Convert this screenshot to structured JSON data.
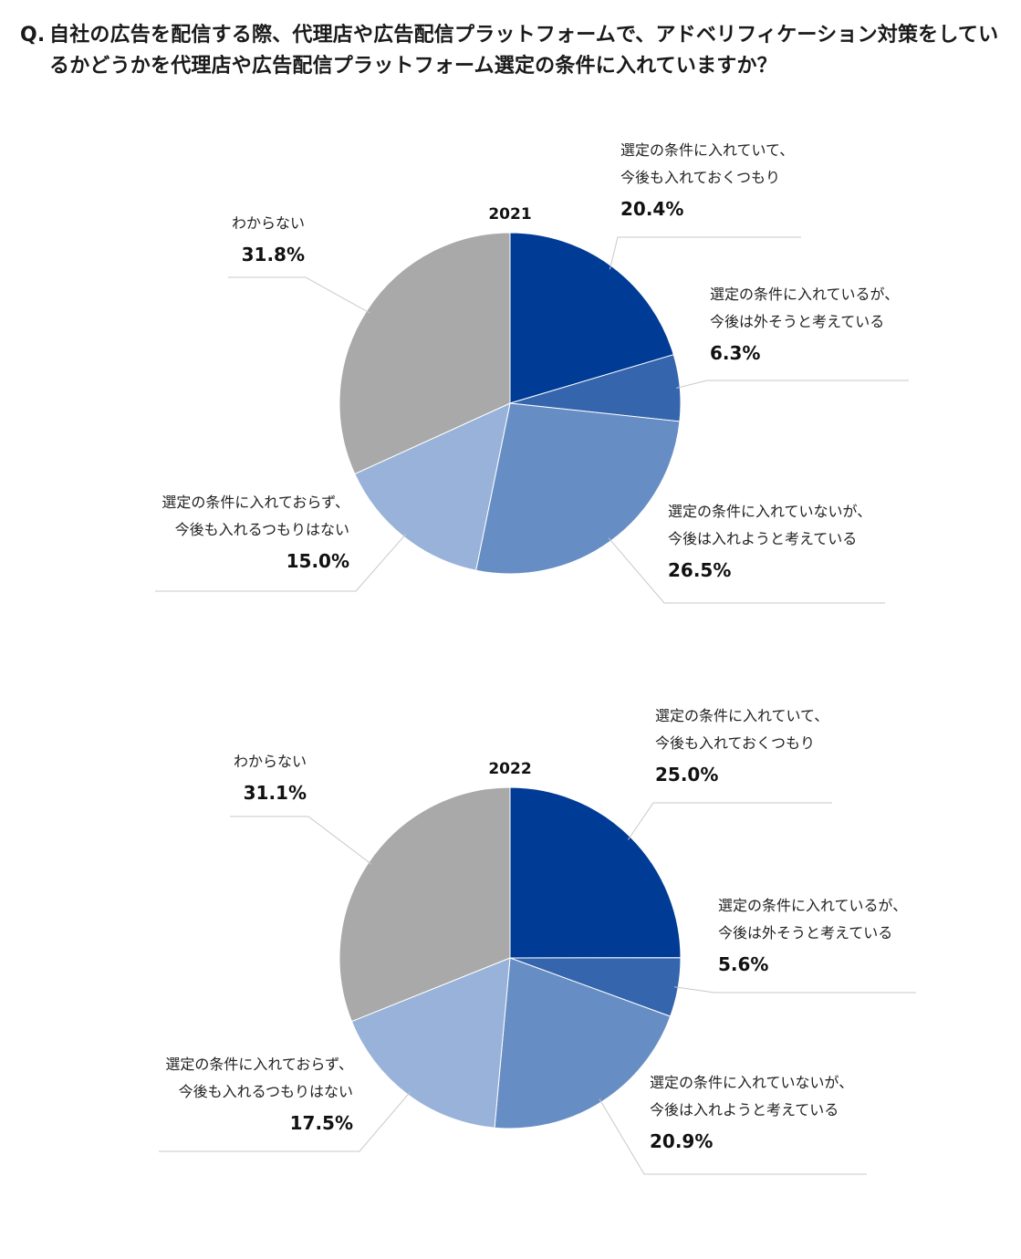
{
  "question": {
    "prefix": "Q.",
    "text": "自社の広告を配信する際、代理店や広告配信プラットフォームで、アドベリフィケーション対策をしているかどうかを代理店や広告配信プラットフォーム選定の条件に入れていますか？"
  },
  "chart_data": [
    {
      "type": "pie",
      "title": "2021",
      "series": [
        {
          "label": [
            "選定の条件に入れていて、",
            "今後も入れておくつもり"
          ],
          "value": 20.4,
          "display": "20.4%",
          "color": "#003b95"
        },
        {
          "label": [
            "選定の条件に入れているが、",
            "今後は外そうと考えている"
          ],
          "value": 6.3,
          "display": "6.3%",
          "color": "#3566ad"
        },
        {
          "label": [
            "選定の条件に入れていないが、",
            "今後は入れようと考えている"
          ],
          "value": 26.5,
          "display": "26.5%",
          "color": "#668dc4"
        },
        {
          "label": [
            "選定の条件に入れておらず、",
            "今後も入れるつもりはない"
          ],
          "value": 15.0,
          "display": "15.0%",
          "color": "#98b2d9"
        },
        {
          "label": [
            "わからない"
          ],
          "value": 31.8,
          "display": "31.8%",
          "color": "#a9a9a9"
        }
      ]
    },
    {
      "type": "pie",
      "title": "2022",
      "series": [
        {
          "label": [
            "選定の条件に入れていて、",
            "今後も入れておくつもり"
          ],
          "value": 25.0,
          "display": "25.0%",
          "color": "#003b95"
        },
        {
          "label": [
            "選定の条件に入れているが、",
            "今後は外そうと考えている"
          ],
          "value": 5.6,
          "display": "5.6%",
          "color": "#3566ad"
        },
        {
          "label": [
            "選定の条件に入れていないが、",
            "今後は入れようと考えている"
          ],
          "value": 20.9,
          "display": "20.9%",
          "color": "#668dc4"
        },
        {
          "label": [
            "選定の条件に入れておらず、",
            "今後も入れるつもりはない"
          ],
          "value": 17.5,
          "display": "17.5%",
          "color": "#98b2d9"
        },
        {
          "label": [
            "わからない"
          ],
          "value": 31.1,
          "display": "31.1%",
          "color": "#a9a9a9"
        }
      ]
    }
  ]
}
